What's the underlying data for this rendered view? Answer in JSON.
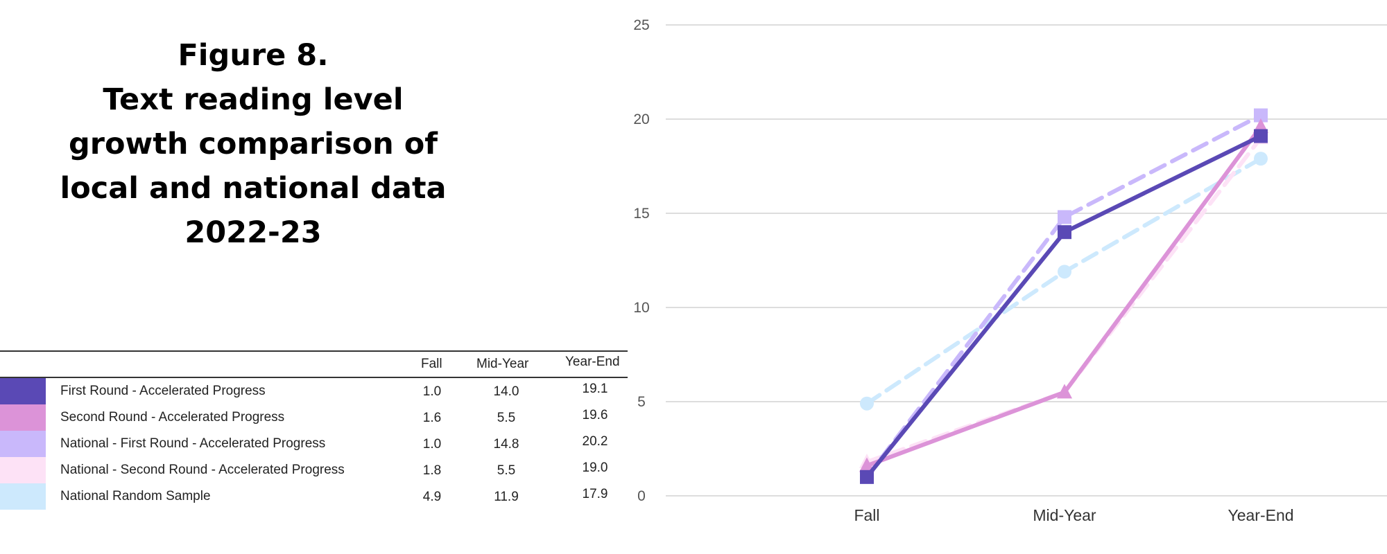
{
  "title_lines": [
    "Figure 8.",
    "Text reading level",
    "growth comparison of",
    "local and national data",
    "2022-23"
  ],
  "table": {
    "columns": [
      "Fall",
      "Mid-Year",
      "Year-End"
    ],
    "rows": [
      {
        "label": "First Round - Accelerated Progress",
        "color": "#5a49b5",
        "values": [
          "1.0",
          "14.0",
          "19.1"
        ]
      },
      {
        "label": "Second Round - Accelerated Progress",
        "color": "#dc93d8",
        "values": [
          "1.6",
          "5.5",
          "19.6"
        ]
      },
      {
        "label": "National - First Round - Accelerated Progress",
        "color": "#c9b8fb",
        "values": [
          "1.0",
          "14.8",
          "20.2"
        ]
      },
      {
        "label": "National - Second Round - Accelerated Progress",
        "color": "#fde2f6",
        "values": [
          "1.8",
          "5.5",
          "19.0"
        ]
      },
      {
        "label": "National Random Sample",
        "color": "#cde9fd",
        "values": [
          "4.9",
          "11.9",
          "17.9"
        ]
      }
    ]
  },
  "chart_data": {
    "type": "line",
    "x": [
      "Fall",
      "Mid-Year",
      "Year-End"
    ],
    "ylim": [
      0,
      25
    ],
    "yticks": [
      0,
      5,
      10,
      15,
      20,
      25
    ],
    "grid": true,
    "series": [
      {
        "name": "National Random Sample",
        "color": "#cde9fd",
        "dash": true,
        "marker": "circle",
        "values": [
          4.9,
          11.9,
          17.9
        ]
      },
      {
        "name": "National - Second Round - Accelerated Progress",
        "color": "#fde2f6",
        "dash": true,
        "marker": "triangle",
        "values": [
          1.8,
          5.5,
          19.0
        ]
      },
      {
        "name": "National - First Round - Accelerated Progress",
        "color": "#c9b8fb",
        "dash": true,
        "marker": "square",
        "values": [
          1.0,
          14.8,
          20.2
        ]
      },
      {
        "name": "Second Round - Accelerated Progress",
        "color": "#dc93d8",
        "dash": false,
        "marker": "triangle",
        "values": [
          1.6,
          5.5,
          19.6
        ]
      },
      {
        "name": "First Round - Accelerated Progress",
        "color": "#5a49b5",
        "dash": false,
        "marker": "square",
        "values": [
          1.0,
          14.0,
          19.1
        ]
      }
    ]
  }
}
